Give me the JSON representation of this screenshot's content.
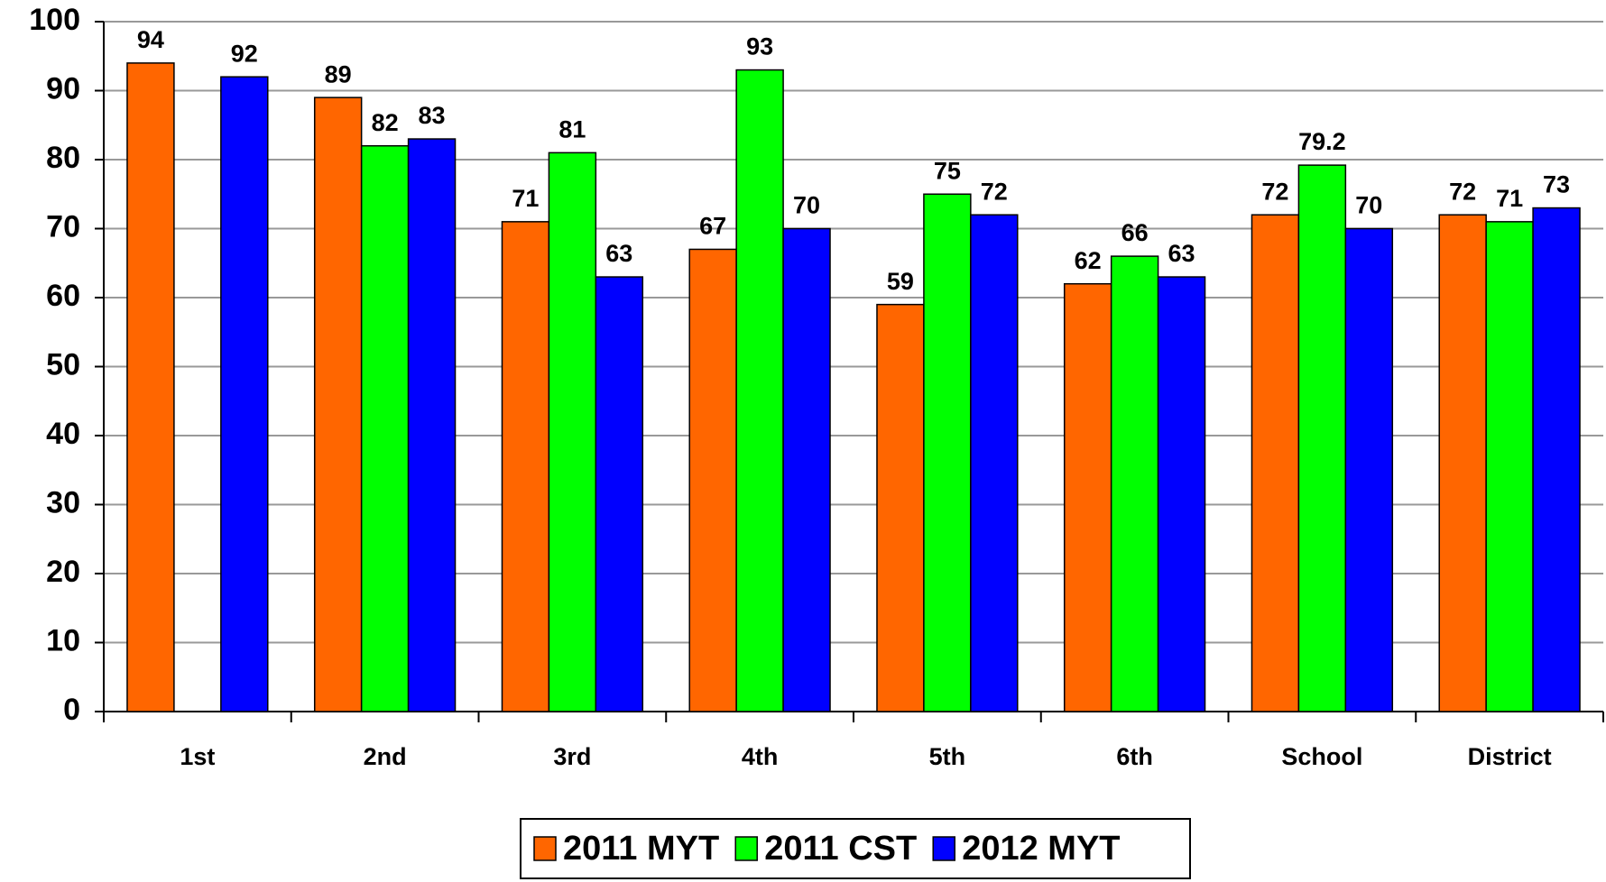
{
  "chart_data": {
    "type": "bar",
    "categories": [
      "1st",
      "2nd",
      "3rd",
      "4th",
      "5th",
      "6th",
      "School",
      "District"
    ],
    "series": [
      {
        "name": "2011 MYT",
        "color": "#ff6600",
        "values": [
          94,
          89,
          71,
          67,
          59,
          62,
          72,
          72
        ]
      },
      {
        "name": "2011 CST",
        "color": "#00ff00",
        "values": [
          null,
          82,
          81,
          93,
          75,
          66,
          79.2,
          71
        ]
      },
      {
        "name": "2012 MYT",
        "color": "#0000ff",
        "values": [
          92,
          83,
          63,
          70,
          72,
          63,
          70,
          73
        ]
      }
    ],
    "ylim": [
      0,
      100
    ],
    "yticks": [
      0,
      10,
      20,
      30,
      40,
      50,
      60,
      70,
      80,
      90,
      100
    ],
    "grid": true,
    "legend": "bottom"
  }
}
